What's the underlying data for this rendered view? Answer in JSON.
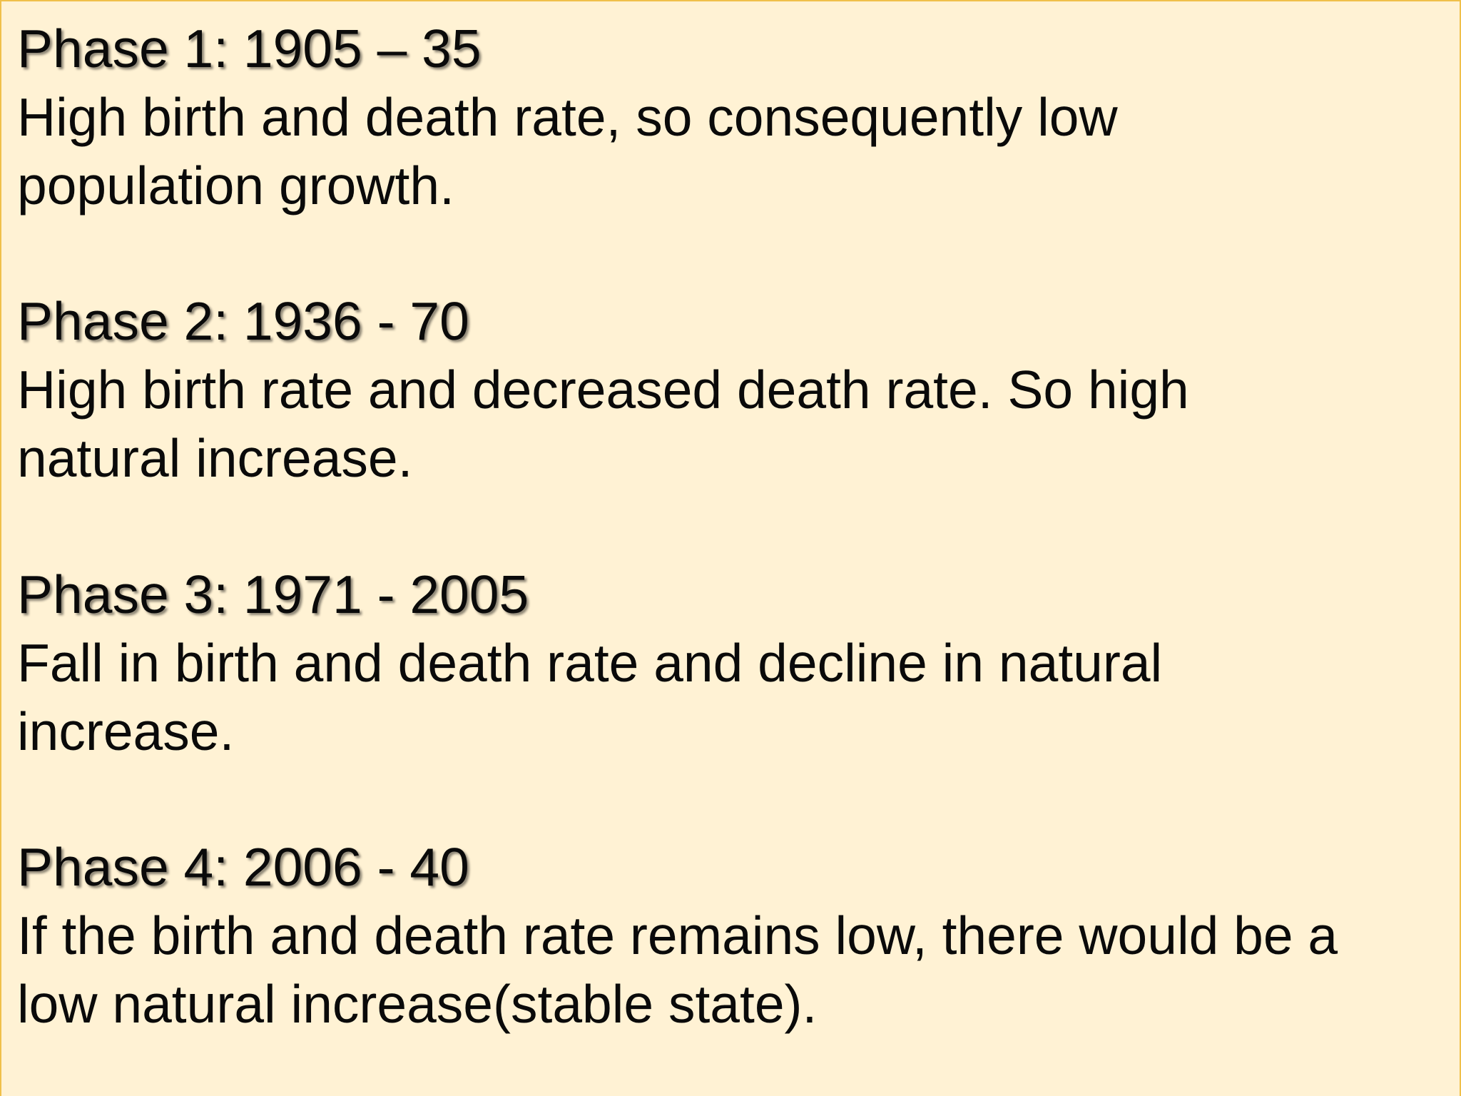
{
  "slide": {
    "background_color": "#fff2d4",
    "border_color": "#f0c04a",
    "phases": [
      {
        "heading": "Phase 1: 1905 – 35",
        "line1": "High birth and death rate, so consequently low",
        "line2": "population growth."
      },
      {
        "heading": "Phase 2: 1936 - 70",
        "line1": "High birth rate and decreased death rate. So high",
        "line2": "natural increase."
      },
      {
        "heading": "Phase 3: 1971 - 2005",
        "line1": "Fall in birth and death rate and decline in natural",
        "line2": "increase."
      },
      {
        "heading": "Phase 4: 2006 - 40",
        "line1": "If the birth and death rate remains low, there would be a",
        "line2": "low natural increase(stable state)."
      }
    ]
  }
}
